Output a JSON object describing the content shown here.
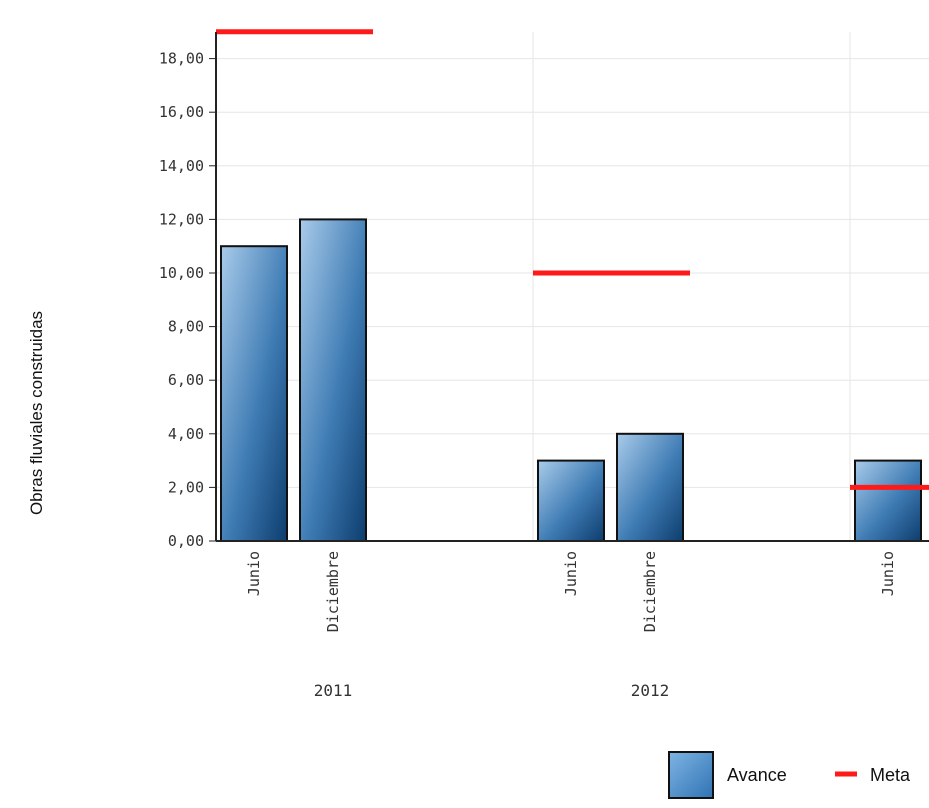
{
  "chart_data": {
    "type": "bar",
    "title": "",
    "xlabel": "",
    "ylabel": "Obras fluviales construidas",
    "ylim": [
      0,
      19
    ],
    "yticks": [
      "0,00",
      "2,00",
      "4,00",
      "6,00",
      "8,00",
      "10,00",
      "12,00",
      "14,00",
      "16,00",
      "18,00"
    ],
    "grid": true,
    "legend_position": "bottom-right",
    "groups": [
      {
        "label": "2011",
        "categories": [
          "Junio",
          "Diciembre"
        ],
        "avance": [
          11,
          12
        ],
        "meta": 19
      },
      {
        "label": "2012",
        "categories": [
          "Junio",
          "Diciembre"
        ],
        "avance": [
          3,
          4
        ],
        "meta": 10
      },
      {
        "label": "",
        "categories": [
          "Junio"
        ],
        "avance": [
          3
        ],
        "meta": 2
      }
    ],
    "series": [
      {
        "name": "Avance",
        "kind": "bar",
        "color": "#3a7ab3"
      },
      {
        "name": "Meta",
        "kind": "target-line",
        "color": "#ff1a1a"
      }
    ]
  }
}
